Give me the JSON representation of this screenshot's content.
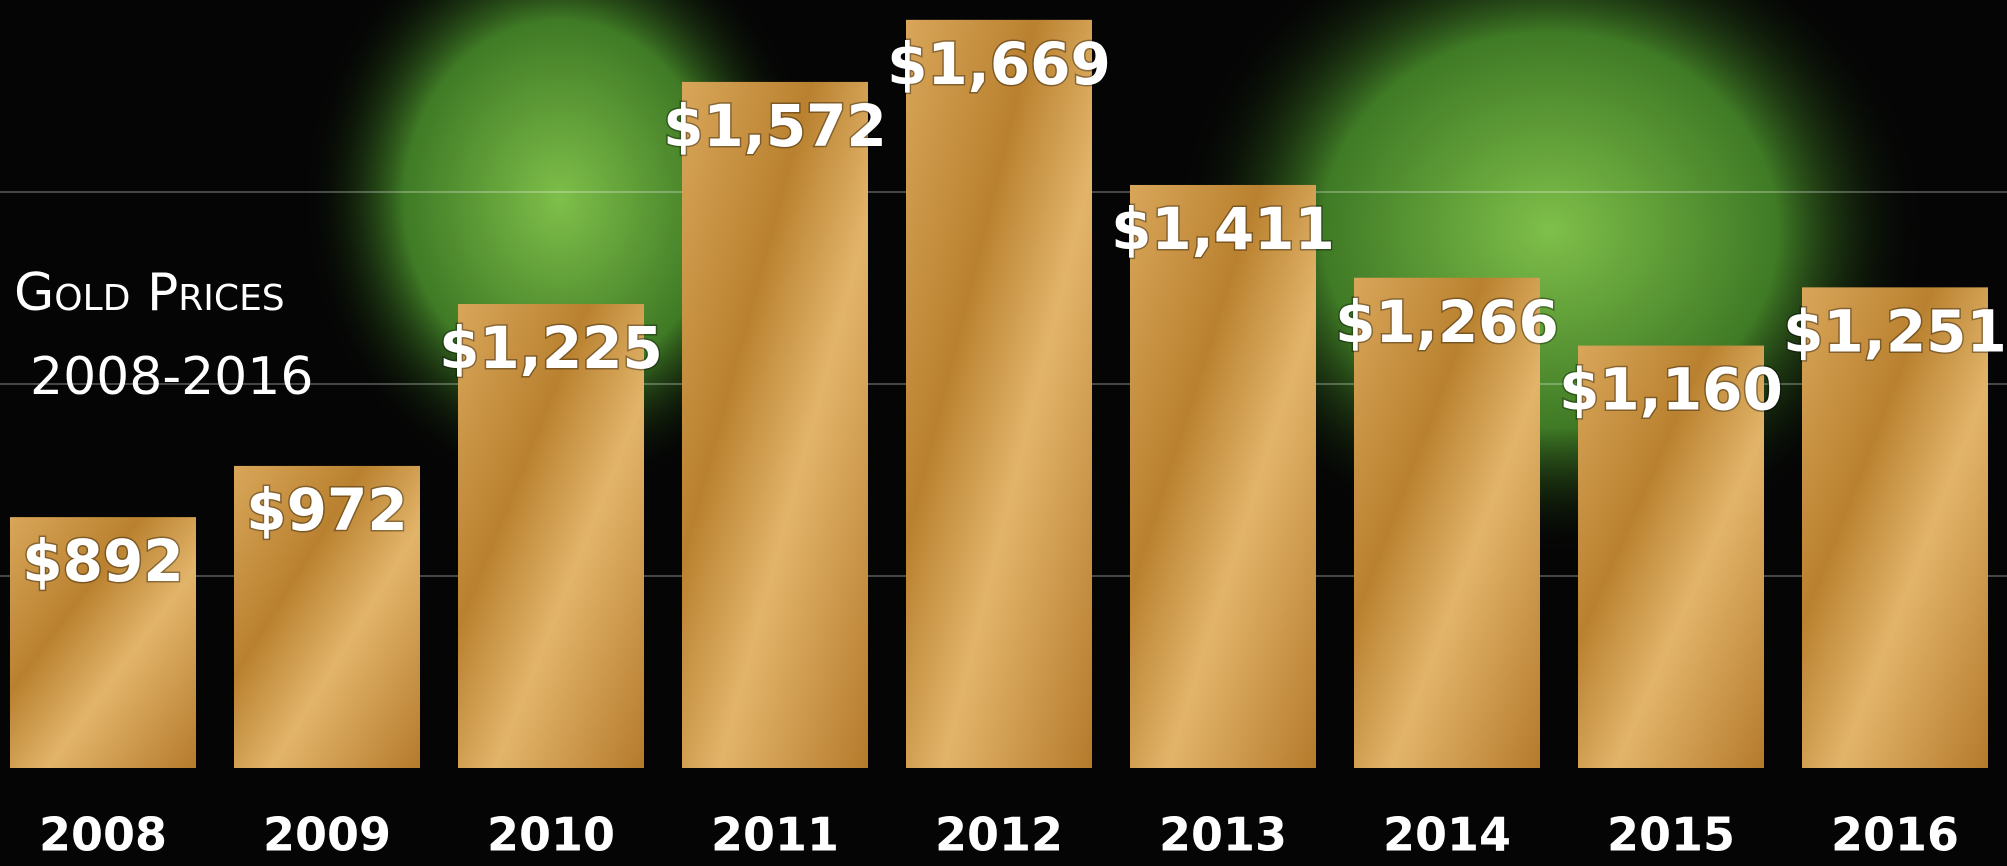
{
  "chart_data": {
    "type": "bar",
    "title": "Gold Prices",
    "subtitle": "2008-2016",
    "categories": [
      "2008",
      "2009",
      "2010",
      "2011",
      "2012",
      "2013",
      "2014",
      "2015",
      "2016"
    ],
    "values": [
      892,
      972,
      1225,
      1572,
      1669,
      1411,
      1266,
      1160,
      1251
    ],
    "value_labels": [
      "$892",
      "$972",
      "$1,225",
      "$1,572",
      "$1,669",
      "$1,411",
      "$1,266",
      "$1,160",
      "$1,251"
    ],
    "color": "#c8923f",
    "ylim": [
      500,
      1700
    ],
    "yticks": [
      800,
      1100,
      1400
    ],
    "grid": true
  }
}
